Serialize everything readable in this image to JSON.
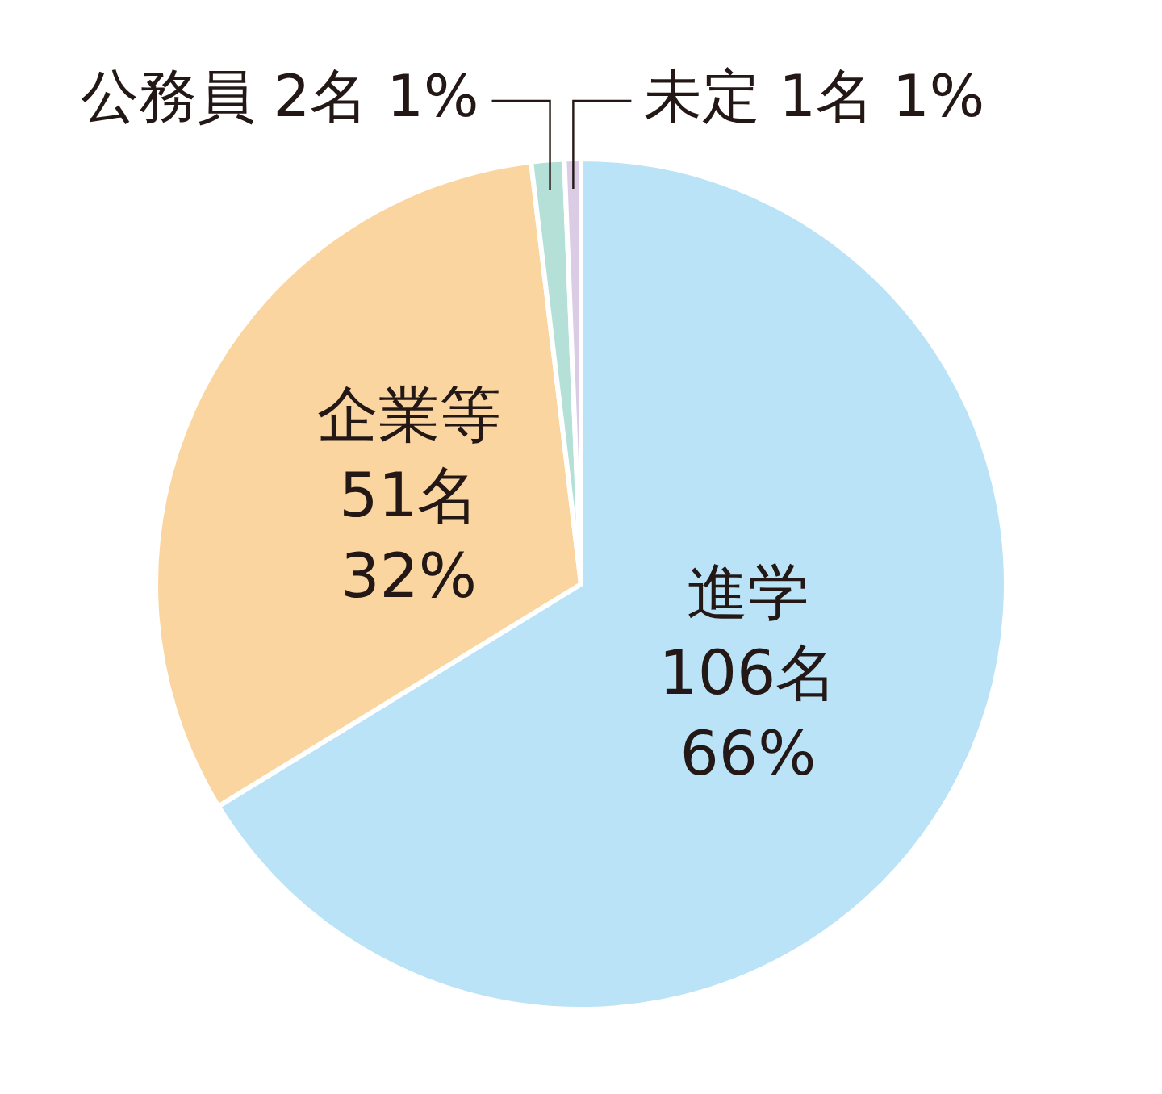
{
  "chart_data": {
    "type": "pie",
    "categories": [
      "進学",
      "企業等",
      "公務員",
      "未定"
    ],
    "values": [
      106,
      51,
      2,
      1
    ],
    "value_labels": [
      "106名 66%",
      "51名 32%",
      "2名 1%",
      "1名 1%"
    ],
    "colors": [
      "#bae3f7",
      "#fbd5a0",
      "#b5e0d8",
      "#dccbe5"
    ],
    "legend": false
  }
}
